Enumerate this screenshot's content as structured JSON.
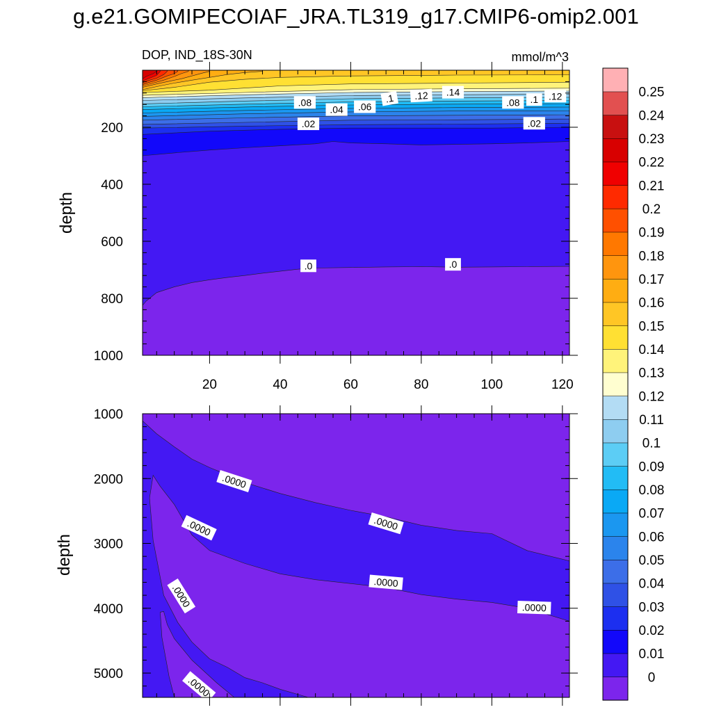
{
  "title": "g.e21.GOMIPECOIAF_JRA.TL319_g17.CMIP6-omip2.001",
  "chart_data": [
    {
      "type": "contour",
      "panel": "upper",
      "subtitle_left": "DOP, IND_18S-30N",
      "subtitle_right": "mmol/m^3",
      "ylabel": "depth",
      "xlabel": "",
      "xlim": [
        1,
        122
      ],
      "ylim": [
        1000,
        0
      ],
      "x_ticks": [
        20,
        40,
        60,
        80,
        100,
        120
      ],
      "y_ticks": [
        200,
        400,
        600,
        800,
        1000
      ],
      "contour_labels": [
        {
          "text": ".08",
          "x": 47,
          "y": 113
        },
        {
          "text": ".04",
          "x": 56,
          "y": 138
        },
        {
          "text": ".06",
          "x": 64,
          "y": 128
        },
        {
          "text": ".1",
          "x": 71,
          "y": 99
        },
        {
          "text": ".12",
          "x": 80,
          "y": 89
        },
        {
          "text": ".14",
          "x": 89,
          "y": 77
        },
        {
          "text": ".08",
          "x": 106,
          "y": 113
        },
        {
          "text": ".1",
          "x": 112,
          "y": 103
        },
        {
          "text": ".12",
          "x": 118,
          "y": 91
        },
        {
          "text": ".02",
          "x": 48,
          "y": 188
        },
        {
          "text": ".02",
          "x": 112,
          "y": 186
        },
        {
          "text": ".0",
          "x": 48,
          "y": 686
        },
        {
          "text": ".0",
          "x": 89,
          "y": 681
        }
      ],
      "boundaries": [
        {
          "level": 0.0,
          "points": [
            [
              1,
              825
            ],
            [
              2,
              810
            ],
            [
              5,
              780
            ],
            [
              10,
              760
            ],
            [
              15,
              745
            ],
            [
              20,
              735
            ],
            [
              25,
              727
            ],
            [
              30,
              720
            ],
            [
              35,
              712
            ],
            [
              40,
              705
            ],
            [
              45,
              698
            ],
            [
              50,
              694
            ],
            [
              60,
              692
            ],
            [
              70,
              690
            ],
            [
              80,
              689
            ],
            [
              90,
              691
            ],
            [
              100,
              690
            ],
            [
              110,
              689
            ],
            [
              122,
              688
            ]
          ]
        },
        {
          "level": 0.01,
          "points": [
            [
              1,
              300
            ],
            [
              10,
              290
            ],
            [
              20,
              280
            ],
            [
              30,
              272
            ],
            [
              40,
              265
            ],
            [
              50,
              258
            ],
            [
              55,
              250
            ],
            [
              60,
              255
            ],
            [
              70,
              258
            ],
            [
              80,
              262
            ],
            [
              90,
              260
            ],
            [
              100,
              258
            ],
            [
              110,
              255
            ],
            [
              122,
              250
            ]
          ]
        },
        {
          "level": 0.02,
          "points": [
            [
              1,
              225
            ],
            [
              20,
              214
            ],
            [
              40,
              207
            ],
            [
              60,
              203
            ],
            [
              80,
              203
            ],
            [
              100,
              203
            ],
            [
              122,
              200
            ]
          ]
        },
        {
          "level": 0.03,
          "points": [
            [
              1,
              203
            ],
            [
              30,
              196
            ],
            [
              60,
              191
            ],
            [
              90,
              189
            ],
            [
              122,
              186
            ]
          ]
        },
        {
          "level": 0.04,
          "points": [
            [
              1,
              190
            ],
            [
              30,
              183
            ],
            [
              60,
              175
            ],
            [
              90,
              174
            ],
            [
              122,
              171
            ]
          ]
        },
        {
          "level": 0.05,
          "points": [
            [
              1,
              175
            ],
            [
              30,
              167
            ],
            [
              60,
              160
            ],
            [
              90,
              158
            ],
            [
              122,
              156
            ]
          ]
        },
        {
          "level": 0.06,
          "points": [
            [
              1,
              162
            ],
            [
              30,
              153
            ],
            [
              60,
              146
            ],
            [
              90,
              143
            ],
            [
              122,
              142
            ]
          ]
        },
        {
          "level": 0.07,
          "points": [
            [
              1,
              150
            ],
            [
              30,
              141
            ],
            [
              60,
              134
            ],
            [
              90,
              131
            ],
            [
              122,
              129
            ]
          ]
        },
        {
          "level": 0.08,
          "points": [
            [
              1,
              138
            ],
            [
              30,
              129
            ],
            [
              60,
              122
            ],
            [
              90,
              119
            ],
            [
              122,
              117
            ]
          ]
        },
        {
          "level": 0.09,
          "points": [
            [
              1,
              128
            ],
            [
              30,
              119
            ],
            [
              60,
              111
            ],
            [
              90,
              108
            ],
            [
              122,
              106
            ]
          ]
        },
        {
          "level": 0.1,
          "points": [
            [
              1,
              118
            ],
            [
              30,
              108
            ],
            [
              60,
              100
            ],
            [
              90,
              97
            ],
            [
              122,
              95
            ]
          ]
        },
        {
          "level": 0.11,
          "points": [
            [
              1,
              106
            ],
            [
              30,
              97
            ],
            [
              60,
              89
            ],
            [
              90,
              86
            ],
            [
              122,
              84
            ]
          ]
        },
        {
          "level": 0.12,
          "points": [
            [
              1,
              96
            ],
            [
              30,
              86
            ],
            [
              60,
              78
            ],
            [
              90,
              75
            ],
            [
              122,
              73
            ]
          ]
        },
        {
          "level": 0.13,
          "points": [
            [
              1,
              88
            ],
            [
              30,
              78
            ],
            [
              60,
              68
            ],
            [
              90,
              65
            ],
            [
              122,
              63
            ]
          ]
        },
        {
          "level": 0.14,
          "points": [
            [
              1,
              78
            ],
            [
              20,
              70
            ],
            [
              40,
              55
            ],
            [
              60,
              48
            ],
            [
              90,
              45
            ],
            [
              122,
              42
            ]
          ]
        },
        {
          "level": 0.15,
          "points": [
            [
              1,
              72
            ],
            [
              10,
              60
            ],
            [
              20,
              42
            ],
            [
              30,
              32
            ],
            [
              40,
              25
            ],
            [
              60,
              20
            ],
            [
              90,
              17
            ],
            [
              122,
              16
            ]
          ]
        },
        {
          "level": 0.16,
          "points": [
            [
              1,
              68
            ],
            [
              6,
              55
            ],
            [
              10,
              45
            ],
            [
              15,
              35
            ],
            [
              20,
              25
            ],
            [
              25,
              15
            ],
            [
              30,
              8
            ],
            [
              35,
              4
            ]
          ]
        },
        {
          "level": 0.17,
          "points": [
            [
              1,
              60
            ],
            [
              5,
              48
            ],
            [
              8,
              40
            ],
            [
              12,
              30
            ],
            [
              15,
              20
            ],
            [
              18,
              10
            ],
            [
              20,
              4
            ]
          ]
        },
        {
          "level": 0.18,
          "points": [
            [
              1,
              55
            ],
            [
              4,
              45
            ],
            [
              7,
              35
            ],
            [
              10,
              22
            ],
            [
              12,
              12
            ],
            [
              14,
              4
            ]
          ]
        },
        {
          "level": 0.19,
          "points": [
            [
              1,
              50
            ],
            [
              3,
              42
            ],
            [
              5,
              35
            ],
            [
              8,
              20
            ],
            [
              10,
              12
            ],
            [
              11,
              4
            ]
          ]
        },
        {
          "level": 0.2,
          "points": [
            [
              1,
              44
            ],
            [
              3,
              35
            ],
            [
              5,
              28
            ],
            [
              7,
              15
            ],
            [
              8,
              4
            ]
          ]
        },
        {
          "level": 0.21,
          "points": [
            [
              1,
              38
            ],
            [
              3,
              28
            ],
            [
              5,
              18
            ],
            [
              6,
              4
            ]
          ]
        },
        {
          "level": 0.22,
          "points": [
            [
              1,
              30
            ],
            [
              2,
              22
            ],
            [
              4,
              12
            ],
            [
              5,
              4
            ]
          ]
        }
      ]
    },
    {
      "type": "contour",
      "panel": "lower",
      "ylabel": "depth",
      "xlabel": "",
      "xlim": [
        1,
        122
      ],
      "ylim": [
        5375,
        1000
      ],
      "y_ticks": [
        1000,
        2000,
        3000,
        4000,
        5000
      ],
      "contour_labels": [
        {
          "text": ".0000",
          "x": 27,
          "y": 2040
        },
        {
          "text": ".0000",
          "x": 70,
          "y": 2690
        },
        {
          "text": ".0000",
          "x": 17,
          "y": 2760
        },
        {
          "text": ".0000",
          "x": 70,
          "y": 3600
        },
        {
          "text": ".0000",
          "x": 112,
          "y": 3990
        },
        {
          "text": ".0000",
          "x": 12,
          "y": 3810
        },
        {
          "text": ".0000",
          "x": 17,
          "y": 5210
        }
      ],
      "regions": [
        {
          "color": "#7c25ec",
          "points": [
            [
              1,
              1000
            ],
            [
              122,
              1000
            ],
            [
              122,
              5375
            ],
            [
              1,
              5375
            ]
          ]
        },
        {
          "color": "#4418f3",
          "points": [
            [
              1,
              1110
            ],
            [
              5,
              1310
            ],
            [
              10,
              1510
            ],
            [
              15,
              1700
            ],
            [
              20,
              1830
            ],
            [
              25,
              1940
            ],
            [
              30,
              2060
            ],
            [
              40,
              2230
            ],
            [
              50,
              2370
            ],
            [
              60,
              2490
            ],
            [
              70,
              2590
            ],
            [
              80,
              2720
            ],
            [
              90,
              2800
            ],
            [
              100,
              2850
            ],
            [
              110,
              3110
            ],
            [
              122,
              3270
            ],
            [
              122,
              4200
            ],
            [
              110,
              4000
            ],
            [
              100,
              3910
            ],
            [
              90,
              3860
            ],
            [
              80,
              3790
            ],
            [
              70,
              3680
            ],
            [
              60,
              3620
            ],
            [
              50,
              3560
            ],
            [
              40,
              3470
            ],
            [
              30,
              3310
            ],
            [
              20,
              3110
            ],
            [
              15,
              2870
            ],
            [
              10,
              2400
            ],
            [
              6,
              2120
            ],
            [
              4,
              1950
            ],
            [
              3,
              2300
            ],
            [
              4,
              2950
            ],
            [
              7,
              3800
            ],
            [
              11,
              4220
            ],
            [
              15,
              4520
            ],
            [
              20,
              4780
            ],
            [
              25,
              4910
            ],
            [
              30,
              5070
            ],
            [
              35,
              5150
            ],
            [
              40,
              5250
            ],
            [
              48,
              5375
            ],
            [
              1,
              5375
            ]
          ]
        },
        {
          "color": "#7c25ec",
          "points": [
            [
              6,
              4060
            ],
            [
              6.5,
              4450
            ],
            [
              7.5,
              4750
            ],
            [
              8.5,
              5050
            ],
            [
              10,
              5375
            ],
            [
              27,
              5375
            ],
            [
              22,
              5150
            ],
            [
              15,
              4800
            ],
            [
              10,
              4470
            ],
            [
              8,
              4250
            ],
            [
              7,
              4050
            ]
          ]
        }
      ]
    }
  ],
  "colorbar": {
    "labels": [
      "0",
      "0.01",
      "0.02",
      "0.03",
      "0.04",
      "0.05",
      "0.06",
      "0.07",
      "0.08",
      "0.09",
      "0.1",
      "0.11",
      "0.12",
      "0.13",
      "0.14",
      "0.15",
      "0.16",
      "0.17",
      "0.18",
      "0.19",
      "0.2",
      "0.21",
      "0.22",
      "0.23",
      "0.24",
      "0.25"
    ],
    "colors": [
      "#7c25ec",
      "#4418f3",
      "#1208fa",
      "#1c2ff0",
      "#2f51e6",
      "#3c6ee8",
      "#2b84ec",
      "#1b97f0",
      "#0aa9f5",
      "#22bcf5",
      "#5ccdf5",
      "#8ecdf0",
      "#b3dcf4",
      "#fffed0",
      "#fff37a",
      "#ffe033",
      "#ffc625",
      "#ffad12",
      "#ff950e",
      "#ff7800",
      "#ff5000",
      "#ff2a00",
      "#f00000",
      "#d80000",
      "#c81010",
      "#e25050",
      "#ffb0b4"
    ]
  }
}
